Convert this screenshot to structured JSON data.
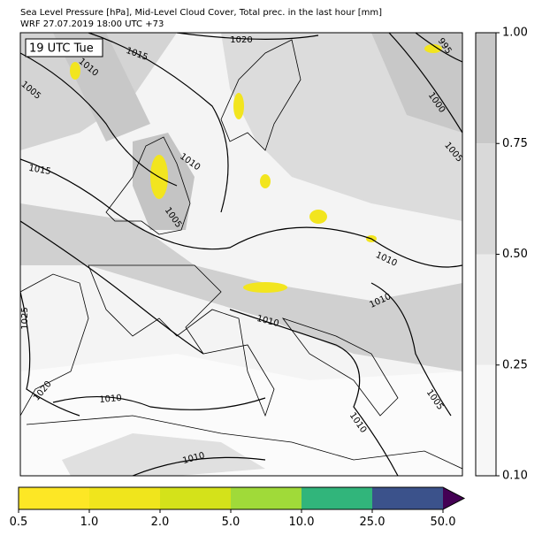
{
  "header": {
    "title": "Sea Level Pressure [hPa], Mid-Level Cloud Cover, Total prec. in the last hour [mm]",
    "subtitle": "WRF 27.07.2019 18:00 UTC +73"
  },
  "map": {
    "time_label": "19 UTC Tue",
    "contour_labels": [
      "1020",
      "1015",
      "1010",
      "1005",
      "995",
      "1000",
      "1005",
      "1010",
      "1005",
      "1015",
      "1010",
      "1010",
      "1010",
      "1025",
      "1020",
      "1010",
      "1005",
      "1010",
      "1010"
    ]
  },
  "cloud_colorbar": {
    "ticks": [
      "1.00",
      "0.75",
      "0.50",
      "0.25",
      "0.10"
    ],
    "colors": [
      "#c8c8c8",
      "#d9d9d9",
      "#ebebeb",
      "#f7f7f7"
    ]
  },
  "precip_colorbar": {
    "ticks": [
      "0.5",
      "1.0",
      "2.0",
      "5.0",
      "10.0",
      "25.0",
      "50.0"
    ],
    "colors": [
      "#fde725",
      "#f0e51c",
      "#d4e21a",
      "#a0da39",
      "#31b57b",
      "#3b528b"
    ],
    "extend_color": "#440154"
  }
}
